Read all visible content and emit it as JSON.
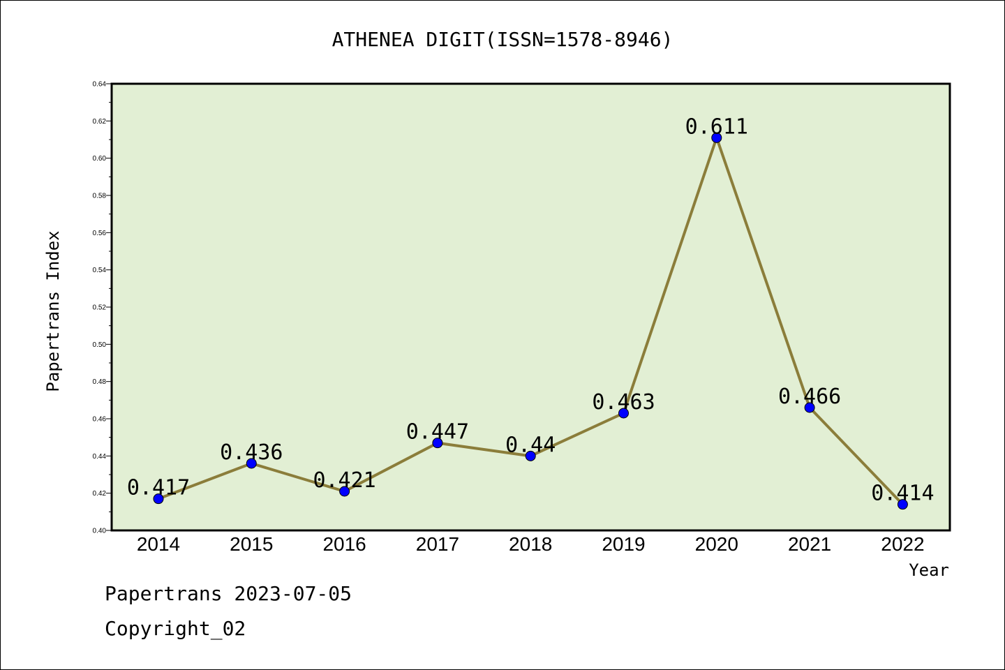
{
  "chart_data": {
    "type": "line",
    "title": "ATHENEA DIGIT(ISSN=1578-8946)",
    "xlabel": "Year",
    "ylabel": "Papertrans Index",
    "categories": [
      "2014",
      "2015",
      "2016",
      "2017",
      "2018",
      "2019",
      "2020",
      "2021",
      "2022"
    ],
    "series": [
      {
        "values": [
          0.417,
          0.436,
          0.421,
          0.447,
          0.44,
          0.463,
          0.611,
          0.466,
          0.414
        ],
        "labels": [
          "0.417",
          "0.436",
          "0.421",
          "0.447",
          "0.44",
          "0.463",
          "0.611",
          "0.466",
          "0.414"
        ]
      }
    ],
    "ylim": [
      0.4,
      0.64
    ],
    "yticks": [
      "0.40",
      "0.42",
      "0.44",
      "0.46",
      "0.48",
      "0.50",
      "0.52",
      "0.54",
      "0.56",
      "0.58",
      "0.60",
      "0.62",
      "0.64"
    ],
    "grid": false,
    "colors": {
      "plot_background": "#e2efd4",
      "line": "#8b7d3a",
      "marker": "#0000ff"
    }
  },
  "footer": {
    "line1": "Papertrans 2023-07-05",
    "line2": "Copyright_02"
  }
}
